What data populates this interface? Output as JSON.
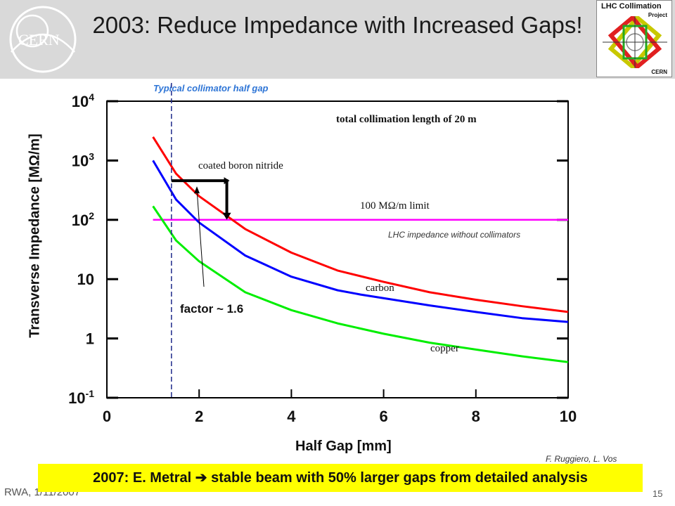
{
  "slide": {
    "title": "2003: Reduce Impedance with Increased Gaps!",
    "badge": {
      "line1": "LHC Collimation",
      "line2": "Project",
      "line3": "CERN"
    },
    "logo_text": "CERN",
    "footer_left": "RWA, 1/11/2007",
    "page_number": "15",
    "credit": "F. Ruggiero, L. Vos",
    "banner": "2007: E. Metral ➔ stable beam with 50% larger gaps from detailed analysis",
    "colors": {
      "title_bar": "#d9d9d9",
      "banner": "#ffff00",
      "annotation_blue": "#2e75d6"
    }
  },
  "chart_data": {
    "type": "line",
    "xlabel": "Half Gap [mm]",
    "ylabel": "Transverse Impedance [MΩ/m]",
    "x_ticks": [
      "0",
      "2",
      "4",
      "6",
      "8",
      "10"
    ],
    "y_ticks": [
      {
        "base": "10",
        "exp": "-1",
        "value": 0.1
      },
      {
        "base": "1",
        "exp": "",
        "value": 1
      },
      {
        "base": "10",
        "exp": "",
        "value": 10
      },
      {
        "base": "10",
        "exp": "2",
        "value": 100
      },
      {
        "base": "10",
        "exp": "3",
        "value": 1000
      },
      {
        "base": "10",
        "exp": "4",
        "value": 10000
      }
    ],
    "xlim": [
      0,
      10
    ],
    "ylim": [
      0.1,
      10000
    ],
    "yscale": "log",
    "inner_title": "total collimation length of 20 m",
    "series": [
      {
        "name": "coated boron nitride",
        "color": "#ff0000",
        "x": [
          1,
          1.5,
          2,
          3,
          4,
          5,
          6,
          7,
          8,
          9,
          10
        ],
        "y": [
          2500,
          600,
          250,
          70,
          28,
          14,
          9,
          6,
          4.5,
          3.5,
          2.8
        ]
      },
      {
        "name": "carbon",
        "color": "#0000ff",
        "x": [
          1,
          1.5,
          2,
          3,
          4,
          5,
          5.5,
          7,
          8,
          9,
          10
        ],
        "y": [
          1000,
          220,
          90,
          25,
          11,
          6.5,
          5.5,
          3.6,
          2.8,
          2.2,
          1.9
        ]
      },
      {
        "name": "copper",
        "color": "#00ee00",
        "x": [
          1,
          1.5,
          2,
          3,
          4,
          5,
          6,
          7,
          8,
          9,
          10
        ],
        "y": [
          170,
          45,
          20,
          6,
          3,
          1.8,
          1.2,
          0.85,
          0.65,
          0.5,
          0.4
        ]
      }
    ],
    "hline": {
      "label": "100 MΩ/m limit",
      "y": 100,
      "xmin": 1,
      "xmax": 10,
      "color": "#ff00ff"
    },
    "hline_note": "LHC impedance without collimators",
    "vline": {
      "x": 1.4,
      "label": "Typical collimator half gap",
      "color": "#1f2a8a"
    },
    "factor_annotation": "factor ~ 1.6",
    "grid": false
  }
}
